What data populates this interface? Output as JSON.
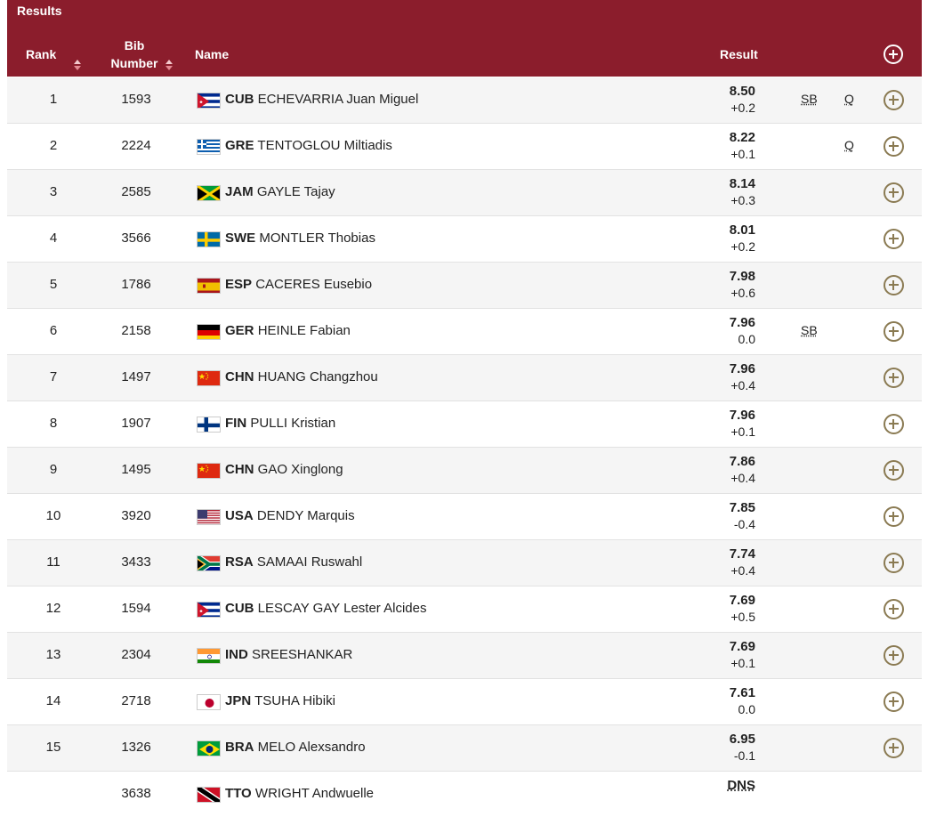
{
  "header": {
    "title": "Results",
    "columns": {
      "rank": "Rank",
      "bib_line1": "Bib",
      "bib_line2": "Number",
      "name": "Name",
      "result": "Result"
    },
    "expand_all_icon": "plus-circle-icon"
  },
  "rows": [
    {
      "rank": "1",
      "bib": "1593",
      "noc": "CUB",
      "name": "ECHEVARRIA Juan Miguel",
      "mark": "8.50",
      "wind": "+0.2",
      "record": "SB",
      "qual": "Q",
      "flag": "cuba-flag"
    },
    {
      "rank": "2",
      "bib": "2224",
      "noc": "GRE",
      "name": "TENTOGLOU Miltiadis",
      "mark": "8.22",
      "wind": "+0.1",
      "record": "",
      "qual": "Q",
      "flag": "greece-flag"
    },
    {
      "rank": "3",
      "bib": "2585",
      "noc": "JAM",
      "name": "GAYLE Tajay",
      "mark": "8.14",
      "wind": "+0.3",
      "record": "",
      "qual": "",
      "flag": "jamaica-flag"
    },
    {
      "rank": "4",
      "bib": "3566",
      "noc": "SWE",
      "name": "MONTLER Thobias",
      "mark": "8.01",
      "wind": "+0.2",
      "record": "",
      "qual": "",
      "flag": "sweden-flag"
    },
    {
      "rank": "5",
      "bib": "1786",
      "noc": "ESP",
      "name": "CACERES Eusebio",
      "mark": "7.98",
      "wind": "+0.6",
      "record": "",
      "qual": "",
      "flag": "spain-flag"
    },
    {
      "rank": "6",
      "bib": "2158",
      "noc": "GER",
      "name": "HEINLE Fabian",
      "mark": "7.96",
      "wind": "0.0",
      "record": "SB",
      "qual": "",
      "flag": "germany-flag"
    },
    {
      "rank": "7",
      "bib": "1497",
      "noc": "CHN",
      "name": "HUANG Changzhou",
      "mark": "7.96",
      "wind": "+0.4",
      "record": "",
      "qual": "",
      "flag": "china-flag"
    },
    {
      "rank": "8",
      "bib": "1907",
      "noc": "FIN",
      "name": "PULLI Kristian",
      "mark": "7.96",
      "wind": "+0.1",
      "record": "",
      "qual": "",
      "flag": "finland-flag"
    },
    {
      "rank": "9",
      "bib": "1495",
      "noc": "CHN",
      "name": "GAO Xinglong",
      "mark": "7.86",
      "wind": "+0.4",
      "record": "",
      "qual": "",
      "flag": "china-flag"
    },
    {
      "rank": "10",
      "bib": "3920",
      "noc": "USA",
      "name": "DENDY Marquis",
      "mark": "7.85",
      "wind": "-0.4",
      "record": "",
      "qual": "",
      "flag": "usa-flag"
    },
    {
      "rank": "11",
      "bib": "3433",
      "noc": "RSA",
      "name": "SAMAAI Ruswahl",
      "mark": "7.74",
      "wind": "+0.4",
      "record": "",
      "qual": "",
      "flag": "south-africa-flag"
    },
    {
      "rank": "12",
      "bib": "1594",
      "noc": "CUB",
      "name": "LESCAY GAY Lester Alcides",
      "mark": "7.69",
      "wind": "+0.5",
      "record": "",
      "qual": "",
      "flag": "cuba-flag"
    },
    {
      "rank": "13",
      "bib": "2304",
      "noc": "IND",
      "name": "SREESHANKAR",
      "mark": "7.69",
      "wind": "+0.1",
      "record": "",
      "qual": "",
      "flag": "india-flag"
    },
    {
      "rank": "14",
      "bib": "2718",
      "noc": "JPN",
      "name": "TSUHA Hibiki",
      "mark": "7.61",
      "wind": "0.0",
      "record": "",
      "qual": "",
      "flag": "japan-flag"
    },
    {
      "rank": "15",
      "bib": "1326",
      "noc": "BRA",
      "name": "MELO Alexsandro",
      "mark": "6.95",
      "wind": "-0.1",
      "record": "",
      "qual": "",
      "flag": "brazil-flag"
    },
    {
      "rank": "",
      "bib": "3638",
      "noc": "TTO",
      "name": "WRIGHT Andwuelle",
      "mark": "DNS",
      "wind": "",
      "record": "",
      "qual": "",
      "flag": "trinidad-flag"
    }
  ],
  "colors": {
    "header_bg": "#8b1d2c",
    "expand_icon": "#8a7a52",
    "row_alt": "#f5f5f5"
  }
}
